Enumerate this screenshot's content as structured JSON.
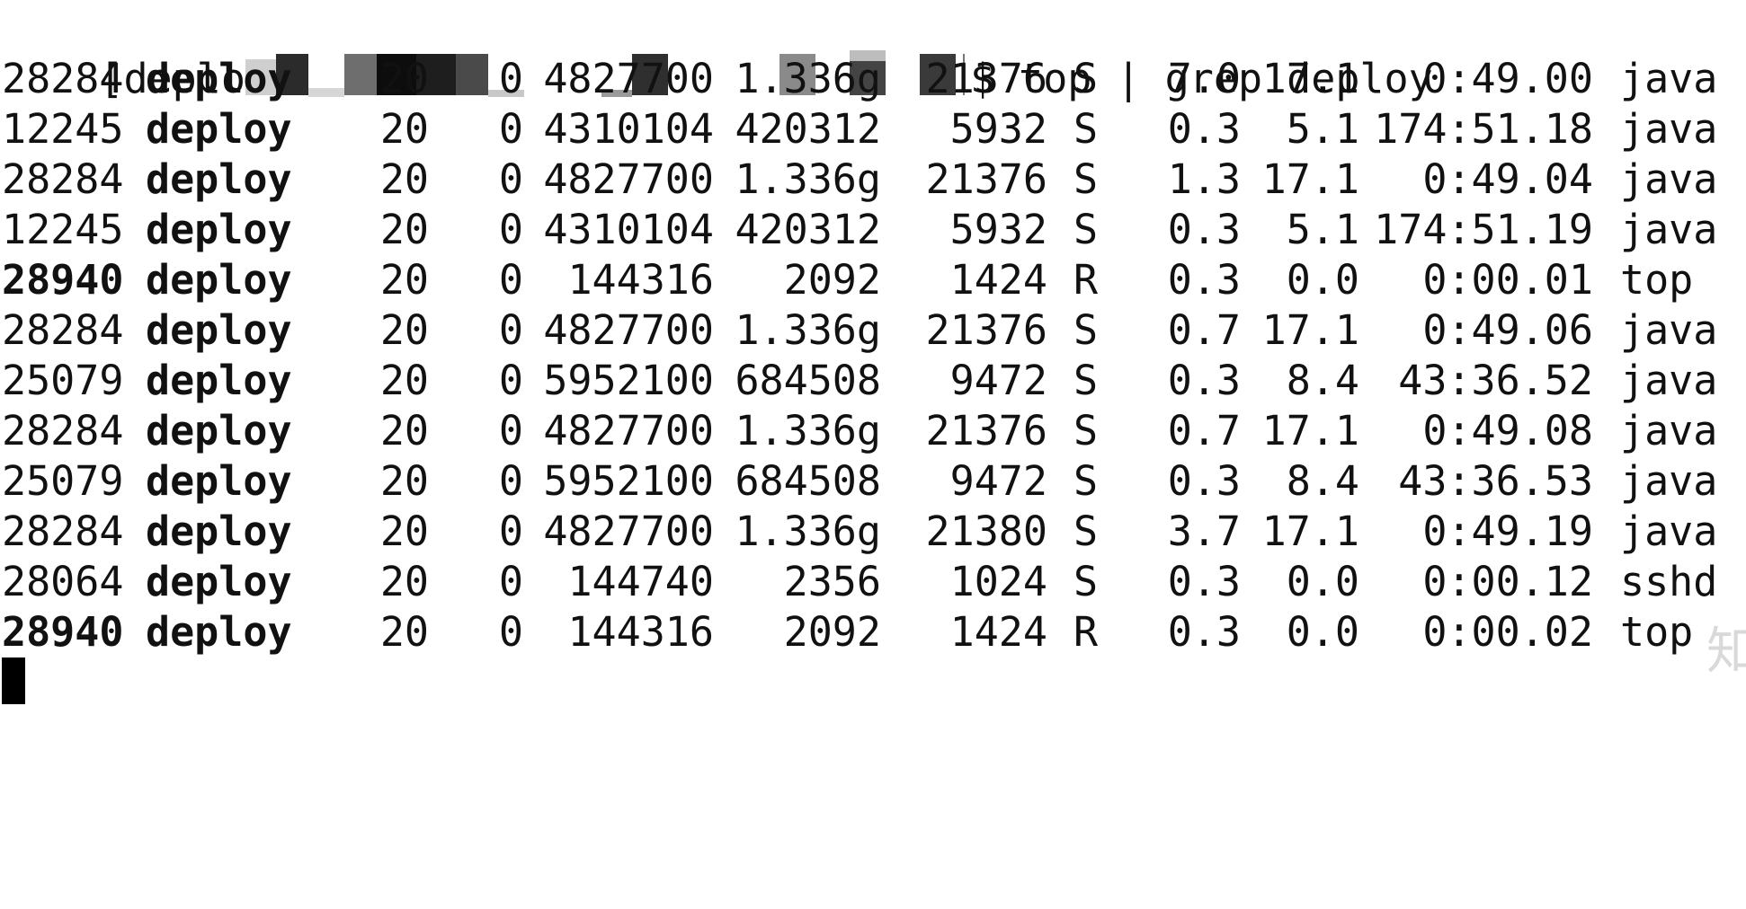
{
  "terminal": {
    "prompt_prefix": "[deplo",
    "prompt_suffix": "$ top | grep deploy",
    "rows": [
      {
        "pid": "28284",
        "pid_bold": false,
        "user": "deploy",
        "pr": "20",
        "ni": "0",
        "virt": "4827700",
        "res": "1.336g",
        "shr": "21376",
        "s": "S",
        "cpu": "7.0",
        "mem": "17.1",
        "time": "0:49.00",
        "cmd": "java"
      },
      {
        "pid": "12245",
        "pid_bold": false,
        "user": "deploy",
        "pr": "20",
        "ni": "0",
        "virt": "4310104",
        "res": "420312",
        "shr": "5932",
        "s": "S",
        "cpu": "0.3",
        "mem": "5.1",
        "time": "174:51.18",
        "cmd": "java"
      },
      {
        "pid": "28284",
        "pid_bold": false,
        "user": "deploy",
        "pr": "20",
        "ni": "0",
        "virt": "4827700",
        "res": "1.336g",
        "shr": "21376",
        "s": "S",
        "cpu": "1.3",
        "mem": "17.1",
        "time": "0:49.04",
        "cmd": "java"
      },
      {
        "pid": "12245",
        "pid_bold": false,
        "user": "deploy",
        "pr": "20",
        "ni": "0",
        "virt": "4310104",
        "res": "420312",
        "shr": "5932",
        "s": "S",
        "cpu": "0.3",
        "mem": "5.1",
        "time": "174:51.19",
        "cmd": "java"
      },
      {
        "pid": "28940",
        "pid_bold": true,
        "user": "deploy",
        "pr": "20",
        "ni": "0",
        "virt": "144316",
        "res": "2092",
        "shr": "1424",
        "s": "R",
        "cpu": "0.3",
        "mem": "0.0",
        "time": "0:00.01",
        "cmd": "top"
      },
      {
        "pid": "28284",
        "pid_bold": false,
        "user": "deploy",
        "pr": "20",
        "ni": "0",
        "virt": "4827700",
        "res": "1.336g",
        "shr": "21376",
        "s": "S",
        "cpu": "0.7",
        "mem": "17.1",
        "time": "0:49.06",
        "cmd": "java"
      },
      {
        "pid": "25079",
        "pid_bold": false,
        "user": "deploy",
        "pr": "20",
        "ni": "0",
        "virt": "5952100",
        "res": "684508",
        "shr": "9472",
        "s": "S",
        "cpu": "0.3",
        "mem": "8.4",
        "time": "43:36.52",
        "cmd": "java"
      },
      {
        "pid": "28284",
        "pid_bold": false,
        "user": "deploy",
        "pr": "20",
        "ni": "0",
        "virt": "4827700",
        "res": "1.336g",
        "shr": "21376",
        "s": "S",
        "cpu": "0.7",
        "mem": "17.1",
        "time": "0:49.08",
        "cmd": "java"
      },
      {
        "pid": "25079",
        "pid_bold": false,
        "user": "deploy",
        "pr": "20",
        "ni": "0",
        "virt": "5952100",
        "res": "684508",
        "shr": "9472",
        "s": "S",
        "cpu": "0.3",
        "mem": "8.4",
        "time": "43:36.53",
        "cmd": "java"
      },
      {
        "pid": "28284",
        "pid_bold": false,
        "user": "deploy",
        "pr": "20",
        "ni": "0",
        "virt": "4827700",
        "res": "1.336g",
        "shr": "21380",
        "s": "S",
        "cpu": "3.7",
        "mem": "17.1",
        "time": "0:49.19",
        "cmd": "java"
      },
      {
        "pid": "28064",
        "pid_bold": false,
        "user": "deploy",
        "pr": "20",
        "ni": "0",
        "virt": "144740",
        "res": "2356",
        "shr": "1024",
        "s": "S",
        "cpu": "0.3",
        "mem": "0.0",
        "time": "0:00.12",
        "cmd": "sshd"
      },
      {
        "pid": "28940",
        "pid_bold": true,
        "user": "deploy",
        "pr": "20",
        "ni": "0",
        "virt": "144316",
        "res": "2092",
        "shr": "1424",
        "s": "R",
        "cpu": "0.3",
        "mem": "0.0",
        "time": "0:00.02",
        "cmd": "top"
      }
    ]
  },
  "watermark": {
    "text": "知"
  },
  "colors": {
    "background": "#ffffff",
    "text": "#111111",
    "cursor": "#000000"
  }
}
